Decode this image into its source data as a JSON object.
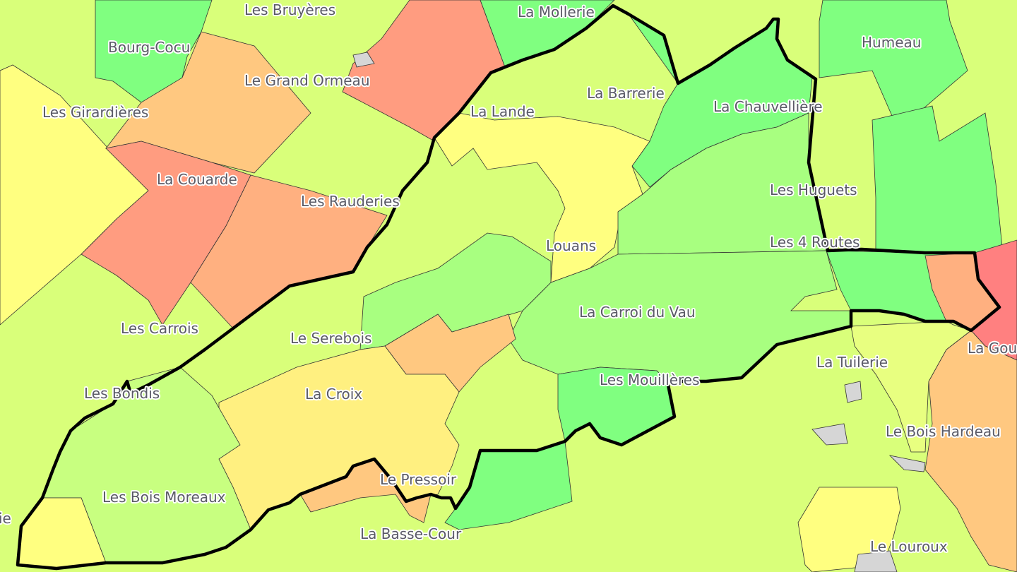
{
  "map": {
    "colors": {
      "background": "#d9ff7a",
      "green": "#80ff80",
      "light_green": "#a8ff80",
      "lime": "#c8ff80",
      "yellow_green": "#e0ff80",
      "yellow": "#ffff80",
      "pale_yellow": "#fff080",
      "light_orange": "#ffc880",
      "orange": "#ffb080",
      "salmon": "#ff9c80",
      "red": "#ff8080",
      "water_grey": "#d6d6d6",
      "boundary": "#000000"
    },
    "places": [
      "Les Bruyères",
      "La Mollerie",
      "Bourg-Cocu",
      "Humeau",
      "Le Grand Ormeau",
      "La Barrerie",
      "Les Girardières",
      "La Lande",
      "La Chauvellière",
      "La Couarde",
      "Les Rauderies",
      "Les Huguets",
      "Louans",
      "Les 4 Routes",
      "La Carroi du Vau",
      "Les Carrois",
      "Le Serebois",
      "La Gou",
      "La Tuilerie",
      "Les Bondis",
      "La Croix",
      "Les Mouillères",
      "Le Bois Hardeau",
      "Le Pressoir",
      "Les Bois Moreaux",
      "ie",
      "La Basse-Cour",
      "Le Louroux"
    ]
  }
}
